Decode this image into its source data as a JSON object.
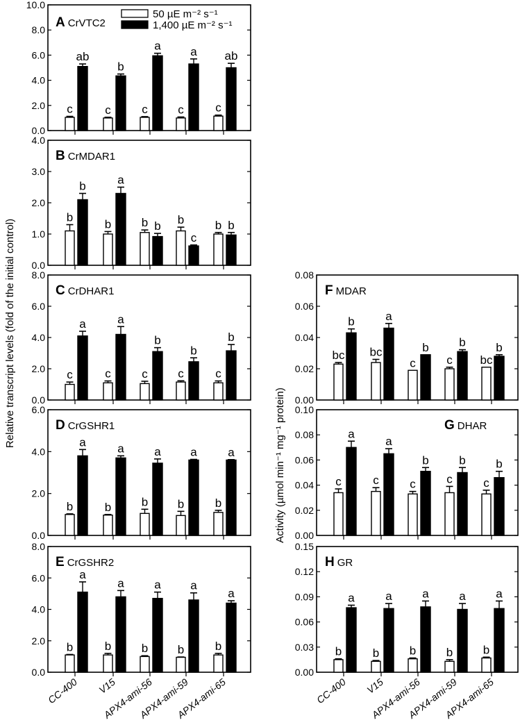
{
  "colors": {
    "low_light_fill": "#ffffff",
    "high_light_fill": "#000000",
    "axis": "#000000"
  },
  "legend": {
    "items": [
      {
        "label": "50 µE m⁻² s⁻¹",
        "fill": "#ffffff"
      },
      {
        "label": "1,400 µE m⁻² s⁻¹",
        "fill": "#000000"
      }
    ]
  },
  "left_ylabel": "Relative transcript levels (fold of the initial control)",
  "right_ylabel": "Activity (µmol min⁻¹ mg⁻¹ protein)",
  "chart_data": [
    {
      "type": "bar",
      "panel": "A",
      "title": "CrVTC2",
      "categories": [
        "CC-400",
        "V15",
        "APX4-ami-56",
        "APX4-ami-59",
        "APX4-ami-65"
      ],
      "ylim": [
        0,
        10
      ],
      "yticks": [
        "0.0",
        "2.0",
        "4.0",
        "6.0",
        "8.0",
        "10.0"
      ],
      "ytick_values": [
        0,
        2,
        4,
        6,
        8,
        10
      ],
      "series": [
        {
          "name": "50 µE m⁻² s⁻¹",
          "values": [
            1.05,
            1.0,
            1.05,
            1.0,
            1.15
          ],
          "errors": [
            0.08,
            0.06,
            0.06,
            0.08,
            0.08
          ],
          "letters": [
            "c",
            "c",
            "c",
            "c",
            "c"
          ]
        },
        {
          "name": "1,400 µE m⁻² s⁻¹",
          "values": [
            5.1,
            4.35,
            5.95,
            5.3,
            5.0
          ],
          "errors": [
            0.2,
            0.15,
            0.2,
            0.4,
            0.35
          ],
          "letters": [
            "ab",
            "b",
            "a",
            "a",
            "ab"
          ]
        }
      ]
    },
    {
      "type": "bar",
      "panel": "B",
      "title": "CrMDAR1",
      "categories": [
        "CC-400",
        "V15",
        "APX4-ami-56",
        "APX4-ami-59",
        "APX4-ami-65"
      ],
      "ylim": [
        0,
        4
      ],
      "yticks": [
        "0.0",
        "1.0",
        "2.0",
        "3.0",
        "4.0"
      ],
      "ytick_values": [
        0,
        1,
        2,
        3,
        4
      ],
      "series": [
        {
          "name": "50 µE m⁻² s⁻¹",
          "values": [
            1.1,
            1.0,
            1.05,
            1.1,
            1.0
          ],
          "errors": [
            0.2,
            0.08,
            0.08,
            0.12,
            0.05
          ],
          "letters": [
            "b",
            "b",
            "b",
            "b",
            "b"
          ]
        },
        {
          "name": "1,400 µE m⁻² s⁻¹",
          "values": [
            2.1,
            2.3,
            0.92,
            0.62,
            0.97
          ],
          "errors": [
            0.2,
            0.2,
            0.1,
            0.03,
            0.08
          ],
          "letters": [
            "b",
            "a",
            "b",
            "c",
            "b"
          ]
        }
      ]
    },
    {
      "type": "bar",
      "panel": "C",
      "title": "CrDHAR1",
      "categories": [
        "CC-400",
        "V15",
        "APX4-ami-56",
        "APX4-ami-59",
        "APX4-ami-65"
      ],
      "ylim": [
        0,
        8
      ],
      "yticks": [
        "0.0",
        "2.0",
        "4.0",
        "6.0",
        "8.0"
      ],
      "ytick_values": [
        0,
        2,
        4,
        6,
        8
      ],
      "series": [
        {
          "name": "50 µE m⁻² s⁻¹",
          "values": [
            1.0,
            1.1,
            1.05,
            1.15,
            1.1
          ],
          "errors": [
            0.15,
            0.12,
            0.15,
            0.08,
            0.12
          ],
          "letters": [
            "c",
            "c",
            "c",
            "c",
            "c"
          ]
        },
        {
          "name": "1,400 µE m⁻² s⁻¹",
          "values": [
            4.1,
            4.2,
            3.1,
            2.45,
            3.15
          ],
          "errors": [
            0.3,
            0.5,
            0.25,
            0.25,
            0.4
          ],
          "letters": [
            "a",
            "a",
            "b",
            "b",
            "b"
          ]
        }
      ]
    },
    {
      "type": "bar",
      "panel": "D",
      "title": "CrGSHR1",
      "categories": [
        "CC-400",
        "V15",
        "APX4-ami-56",
        "APX4-ami-59",
        "APX4-ami-65"
      ],
      "ylim": [
        0,
        6
      ],
      "yticks": [
        "0.0",
        "2.0",
        "4.0",
        "6.0"
      ],
      "ytick_values": [
        0,
        2,
        4,
        6
      ],
      "series": [
        {
          "name": "50 µE m⁻² s⁻¹",
          "values": [
            1.0,
            0.97,
            1.05,
            0.95,
            1.1
          ],
          "errors": [
            0.03,
            0.03,
            0.2,
            0.2,
            0.1
          ],
          "letters": [
            "b",
            "b",
            "b",
            "b",
            "b"
          ]
        },
        {
          "name": "1,400 µE m⁻² s⁻¹",
          "values": [
            3.8,
            3.7,
            3.45,
            3.6,
            3.6
          ],
          "errors": [
            0.3,
            0.1,
            0.2,
            0.03,
            0.02
          ],
          "letters": [
            "a",
            "a",
            "a",
            "a",
            "a"
          ]
        }
      ]
    },
    {
      "type": "bar",
      "panel": "E",
      "title": "CrGSHR2",
      "categories": [
        "CC-400",
        "V15",
        "APX4-ami-56",
        "APX4-ami-59",
        "APX4-ami-65"
      ],
      "ylim": [
        0,
        8
      ],
      "yticks": [
        "0.0",
        "2.0",
        "4.0",
        "6.0",
        "8.0"
      ],
      "ytick_values": [
        0,
        2,
        4,
        6,
        8
      ],
      "series": [
        {
          "name": "50 µE m⁻² s⁻¹",
          "values": [
            1.1,
            1.1,
            1.0,
            0.95,
            1.1
          ],
          "errors": [
            0.03,
            0.1,
            0.05,
            0.02,
            0.1
          ],
          "letters": [
            "b",
            "b",
            "b",
            "b",
            "b"
          ]
        },
        {
          "name": "1,400 µE m⁻² s⁻¹",
          "values": [
            5.1,
            4.8,
            4.7,
            4.6,
            4.4
          ],
          "errors": [
            0.65,
            0.4,
            0.4,
            0.45,
            0.15
          ],
          "letters": [
            "a",
            "a",
            "a",
            "a",
            "a"
          ]
        }
      ]
    },
    {
      "type": "bar",
      "panel": "F",
      "title": "MDAR",
      "categories": [
        "CC-400",
        "V15",
        "APX4-ami-56",
        "APX4-ami-59",
        "APX4-ami-65"
      ],
      "ylim": [
        0,
        0.08
      ],
      "yticks": [
        "0.00",
        "0.02",
        "0.04",
        "0.06",
        "0.08"
      ],
      "ytick_values": [
        0,
        0.02,
        0.04,
        0.06,
        0.08
      ],
      "series": [
        {
          "name": "50 µE m⁻² s⁻¹",
          "values": [
            0.023,
            0.024,
            0.019,
            0.02,
            0.021
          ],
          "errors": [
            0.001,
            0.002,
            0.0,
            0.001,
            0.0
          ],
          "letters": [
            "bc",
            "bc",
            "c",
            "c",
            "bc"
          ]
        },
        {
          "name": "1,400 µE m⁻² s⁻¹",
          "values": [
            0.043,
            0.046,
            0.029,
            0.031,
            0.028
          ],
          "errors": [
            0.0025,
            0.003,
            0.0,
            0.0012,
            0.001
          ],
          "letters": [
            "b",
            "a",
            "b",
            "b",
            "b"
          ]
        }
      ]
    },
    {
      "type": "bar",
      "panel": "G",
      "title": "DHAR",
      "categories": [
        "CC-400",
        "V15",
        "APX4-ami-56",
        "APX4-ami-59",
        "APX4-ami-65"
      ],
      "ylim": [
        0,
        0.1
      ],
      "yticks": [
        "0.00",
        "0.02",
        "0.04",
        "0.06",
        "0.08",
        "0.10"
      ],
      "ytick_values": [
        0,
        0.02,
        0.04,
        0.06,
        0.08,
        0.1
      ],
      "series": [
        {
          "name": "50 µE m⁻² s⁻¹",
          "values": [
            0.034,
            0.035,
            0.033,
            0.034,
            0.033
          ],
          "errors": [
            0.003,
            0.003,
            0.002,
            0.005,
            0.003
          ],
          "letters": [
            "c",
            "c",
            "c",
            "c",
            "c"
          ]
        },
        {
          "name": "1,400 µE m⁻² s⁻¹",
          "values": [
            0.07,
            0.065,
            0.051,
            0.05,
            0.046
          ],
          "errors": [
            0.005,
            0.004,
            0.003,
            0.004,
            0.005
          ],
          "letters": [
            "a",
            "a",
            "b",
            "b",
            "b"
          ]
        }
      ]
    },
    {
      "type": "bar",
      "panel": "H",
      "title": "GR",
      "categories": [
        "CC-400",
        "V15",
        "APX4-ami-56",
        "APX4-ami-59",
        "APX4-ami-65"
      ],
      "ylim": [
        0,
        0.15
      ],
      "yticks": [
        "0.00",
        "0.03",
        "0.06",
        "0.09",
        "0.12",
        "0.15"
      ],
      "ytick_values": [
        0,
        0.03,
        0.06,
        0.09,
        0.12,
        0.15
      ],
      "series": [
        {
          "name": "50 µE m⁻² s⁻¹",
          "values": [
            0.015,
            0.013,
            0.016,
            0.013,
            0.017
          ],
          "errors": [
            0.001,
            0.001,
            0.001,
            0.002,
            0.001
          ],
          "letters": [
            "b",
            "b",
            "b",
            "b",
            "b"
          ]
        },
        {
          "name": "1,400 µE m⁻² s⁻¹",
          "values": [
            0.077,
            0.076,
            0.078,
            0.075,
            0.076
          ],
          "errors": [
            0.003,
            0.006,
            0.007,
            0.007,
            0.009
          ],
          "letters": [
            "a",
            "a",
            "a",
            "a",
            "a"
          ]
        }
      ]
    }
  ]
}
